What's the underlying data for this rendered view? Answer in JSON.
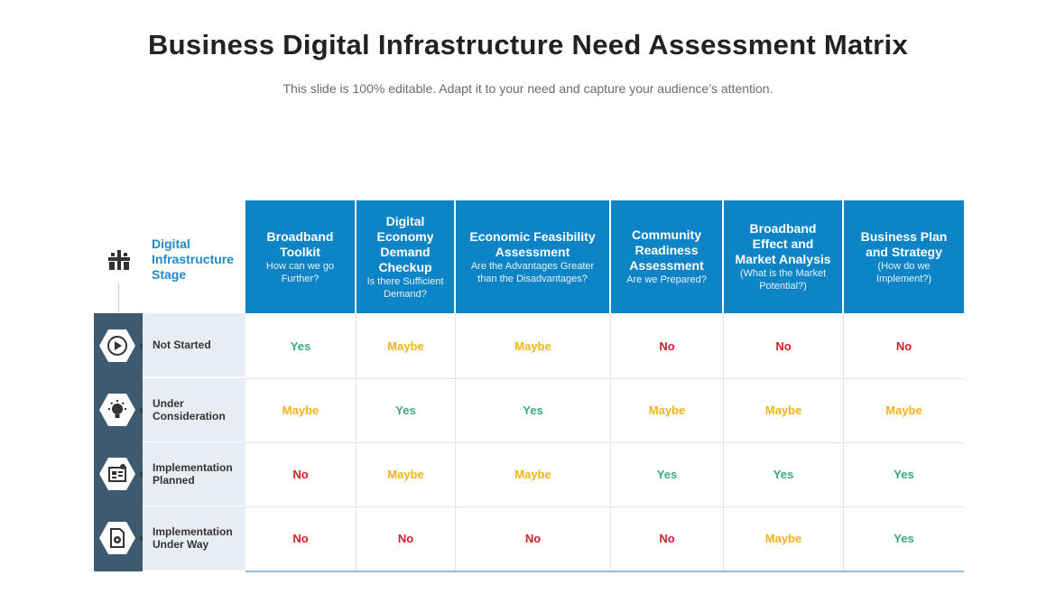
{
  "title": "Business Digital Infrastructure Need Assessment Matrix",
  "subtitle": "This slide is 100% editable. Adapt it to your need and capture your audience’s attention.",
  "corner": {
    "label_lines": [
      "Digital",
      "Infrastructure",
      "Stage"
    ],
    "icon": "infrastructure-icon"
  },
  "columns": [
    {
      "title": [
        "Broadband",
        "Toolkit"
      ],
      "sub": [
        "How can we go",
        "Further?"
      ]
    },
    {
      "title": [
        "Digital",
        "Economy",
        "Demand",
        "Checkup"
      ],
      "sub": [
        "Is there Sufficient",
        "Demand?"
      ]
    },
    {
      "title": [
        "Economic Feasibility",
        "Assessment"
      ],
      "sub": [
        "Are the Advantages Greater",
        "than the Disadvantages?"
      ]
    },
    {
      "title": [
        "Community",
        "Readiness",
        "Assessment"
      ],
      "sub": [
        "Are we Prepared?"
      ]
    },
    {
      "title": [
        "Broadband",
        "Effect and",
        "Market Analysis"
      ],
      "sub": [
        "(What is the Market",
        "Potential?)"
      ]
    },
    {
      "title": [
        "Business Plan",
        "and Strategy"
      ],
      "sub": [
        "(How do we",
        "Implement?)"
      ]
    }
  ],
  "rows": [
    {
      "label": [
        "Not Started"
      ],
      "icon": "play-icon",
      "values": [
        "Yes",
        "Maybe",
        "Maybe",
        "No",
        "No",
        "No"
      ]
    },
    {
      "label": [
        "Under",
        "Consideration"
      ],
      "icon": "idea-icon",
      "values": [
        "Maybe",
        "Yes",
        "Yes",
        "Maybe",
        "Maybe",
        "Maybe"
      ]
    },
    {
      "label": [
        "Implementation",
        "Planned"
      ],
      "icon": "plan-icon",
      "values": [
        "No",
        "Maybe",
        "Maybe",
        "Yes",
        "Yes",
        "Yes"
      ]
    },
    {
      "label": [
        "Implementation",
        "Under Way"
      ],
      "icon": "document-gear-icon",
      "values": [
        "No",
        "No",
        "No",
        "No",
        "Maybe",
        "Yes"
      ]
    }
  ],
  "colors": {
    "header": "#0d84c6",
    "yes": "#3aa887",
    "maybe": "#f2b41c",
    "no": "#d0202c",
    "band": "#3d5a70"
  }
}
